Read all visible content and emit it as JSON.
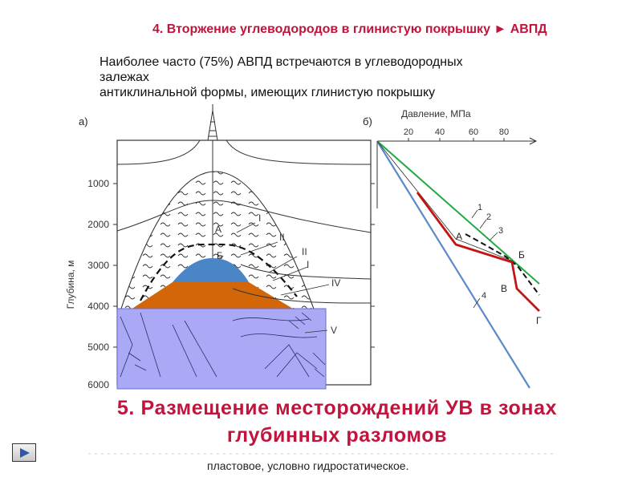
{
  "slide": {
    "title": "4. Вторжение углеводородов в глинистую покрышку ► АВПД",
    "subtitle_lines": [
      "Наиболее часто (75%) АВПД встречаются в углеводородных",
      "залежах",
      "антиклинальной формы, имеющих глинистую покрышку"
    ],
    "headline": "5. Размещение месторождений УВ в зонах глубинных разломов",
    "footer_text": "пластовое, условно гидростатическое."
  },
  "figure_a": {
    "panel_label": "а)",
    "depth_axis_label": "Глубина, м",
    "depth_ticks": [
      "1000",
      "2000",
      "3000",
      "4000",
      "5000",
      "6000"
    ],
    "zone_labels": [
      "I",
      "А",
      "Б",
      "II",
      "II",
      "I",
      "IV",
      "V"
    ],
    "colors": {
      "gas_cap": "#4a86c5",
      "oil_zone": "#d4660a",
      "basement": "#a9a9f6"
    }
  },
  "figure_b": {
    "panel_label": "б)",
    "pressure_axis_label": "Давление, МПа",
    "pressure_ticks": [
      "20",
      "40",
      "60",
      "80"
    ],
    "curve_labels": [
      "1",
      "2",
      "3",
      "4"
    ],
    "point_labels": [
      "А",
      "Б",
      "В",
      "Г"
    ],
    "colors": {
      "curve_1": "#22aa44",
      "curve_4": "#5a8ac8",
      "curve_red": "#c41414",
      "curve_3": "#111111"
    }
  },
  "navigation": {
    "icon": "play-arrow-icon"
  }
}
